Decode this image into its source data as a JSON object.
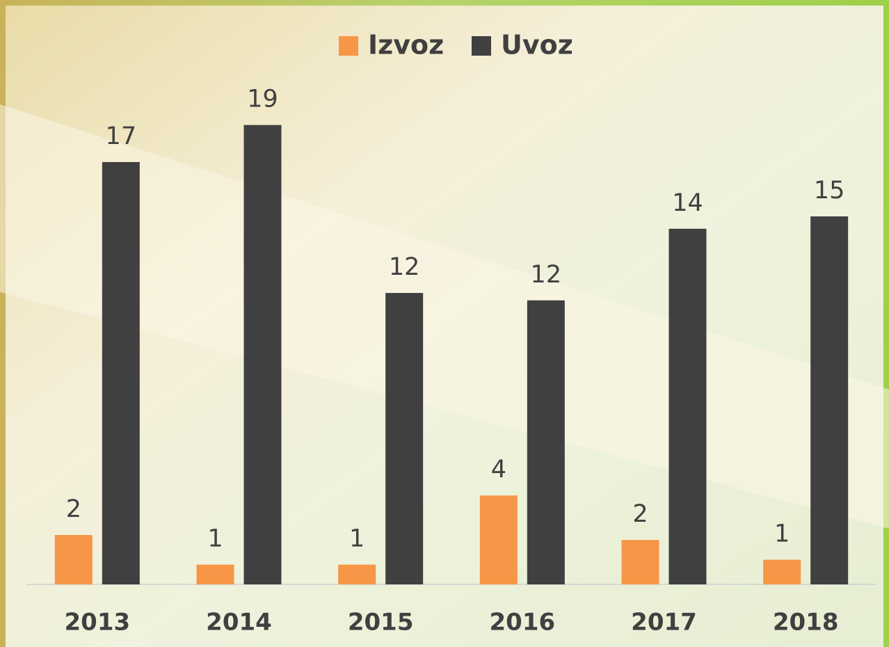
{
  "chart_data": {
    "type": "bar",
    "categories": [
      "2013",
      "2014",
      "2015",
      "2016",
      "2017",
      "2018"
    ],
    "series": [
      {
        "name": "Izvoz",
        "color": "#f79646",
        "values": [
          2.0,
          0.8,
          0.8,
          3.6,
          1.8,
          1.0
        ],
        "value_labels": [
          "2",
          "1",
          "1",
          "4",
          "2",
          "1"
        ]
      },
      {
        "name": "Uvoz",
        "color": "#404040",
        "values": [
          17.1,
          18.6,
          11.8,
          11.5,
          14.4,
          14.9
        ],
        "value_labels": [
          "17",
          "19",
          "12",
          "12",
          "14",
          "15"
        ]
      }
    ],
    "ylim": [
      0,
      20
    ],
    "legend": "top",
    "grid": false
  }
}
